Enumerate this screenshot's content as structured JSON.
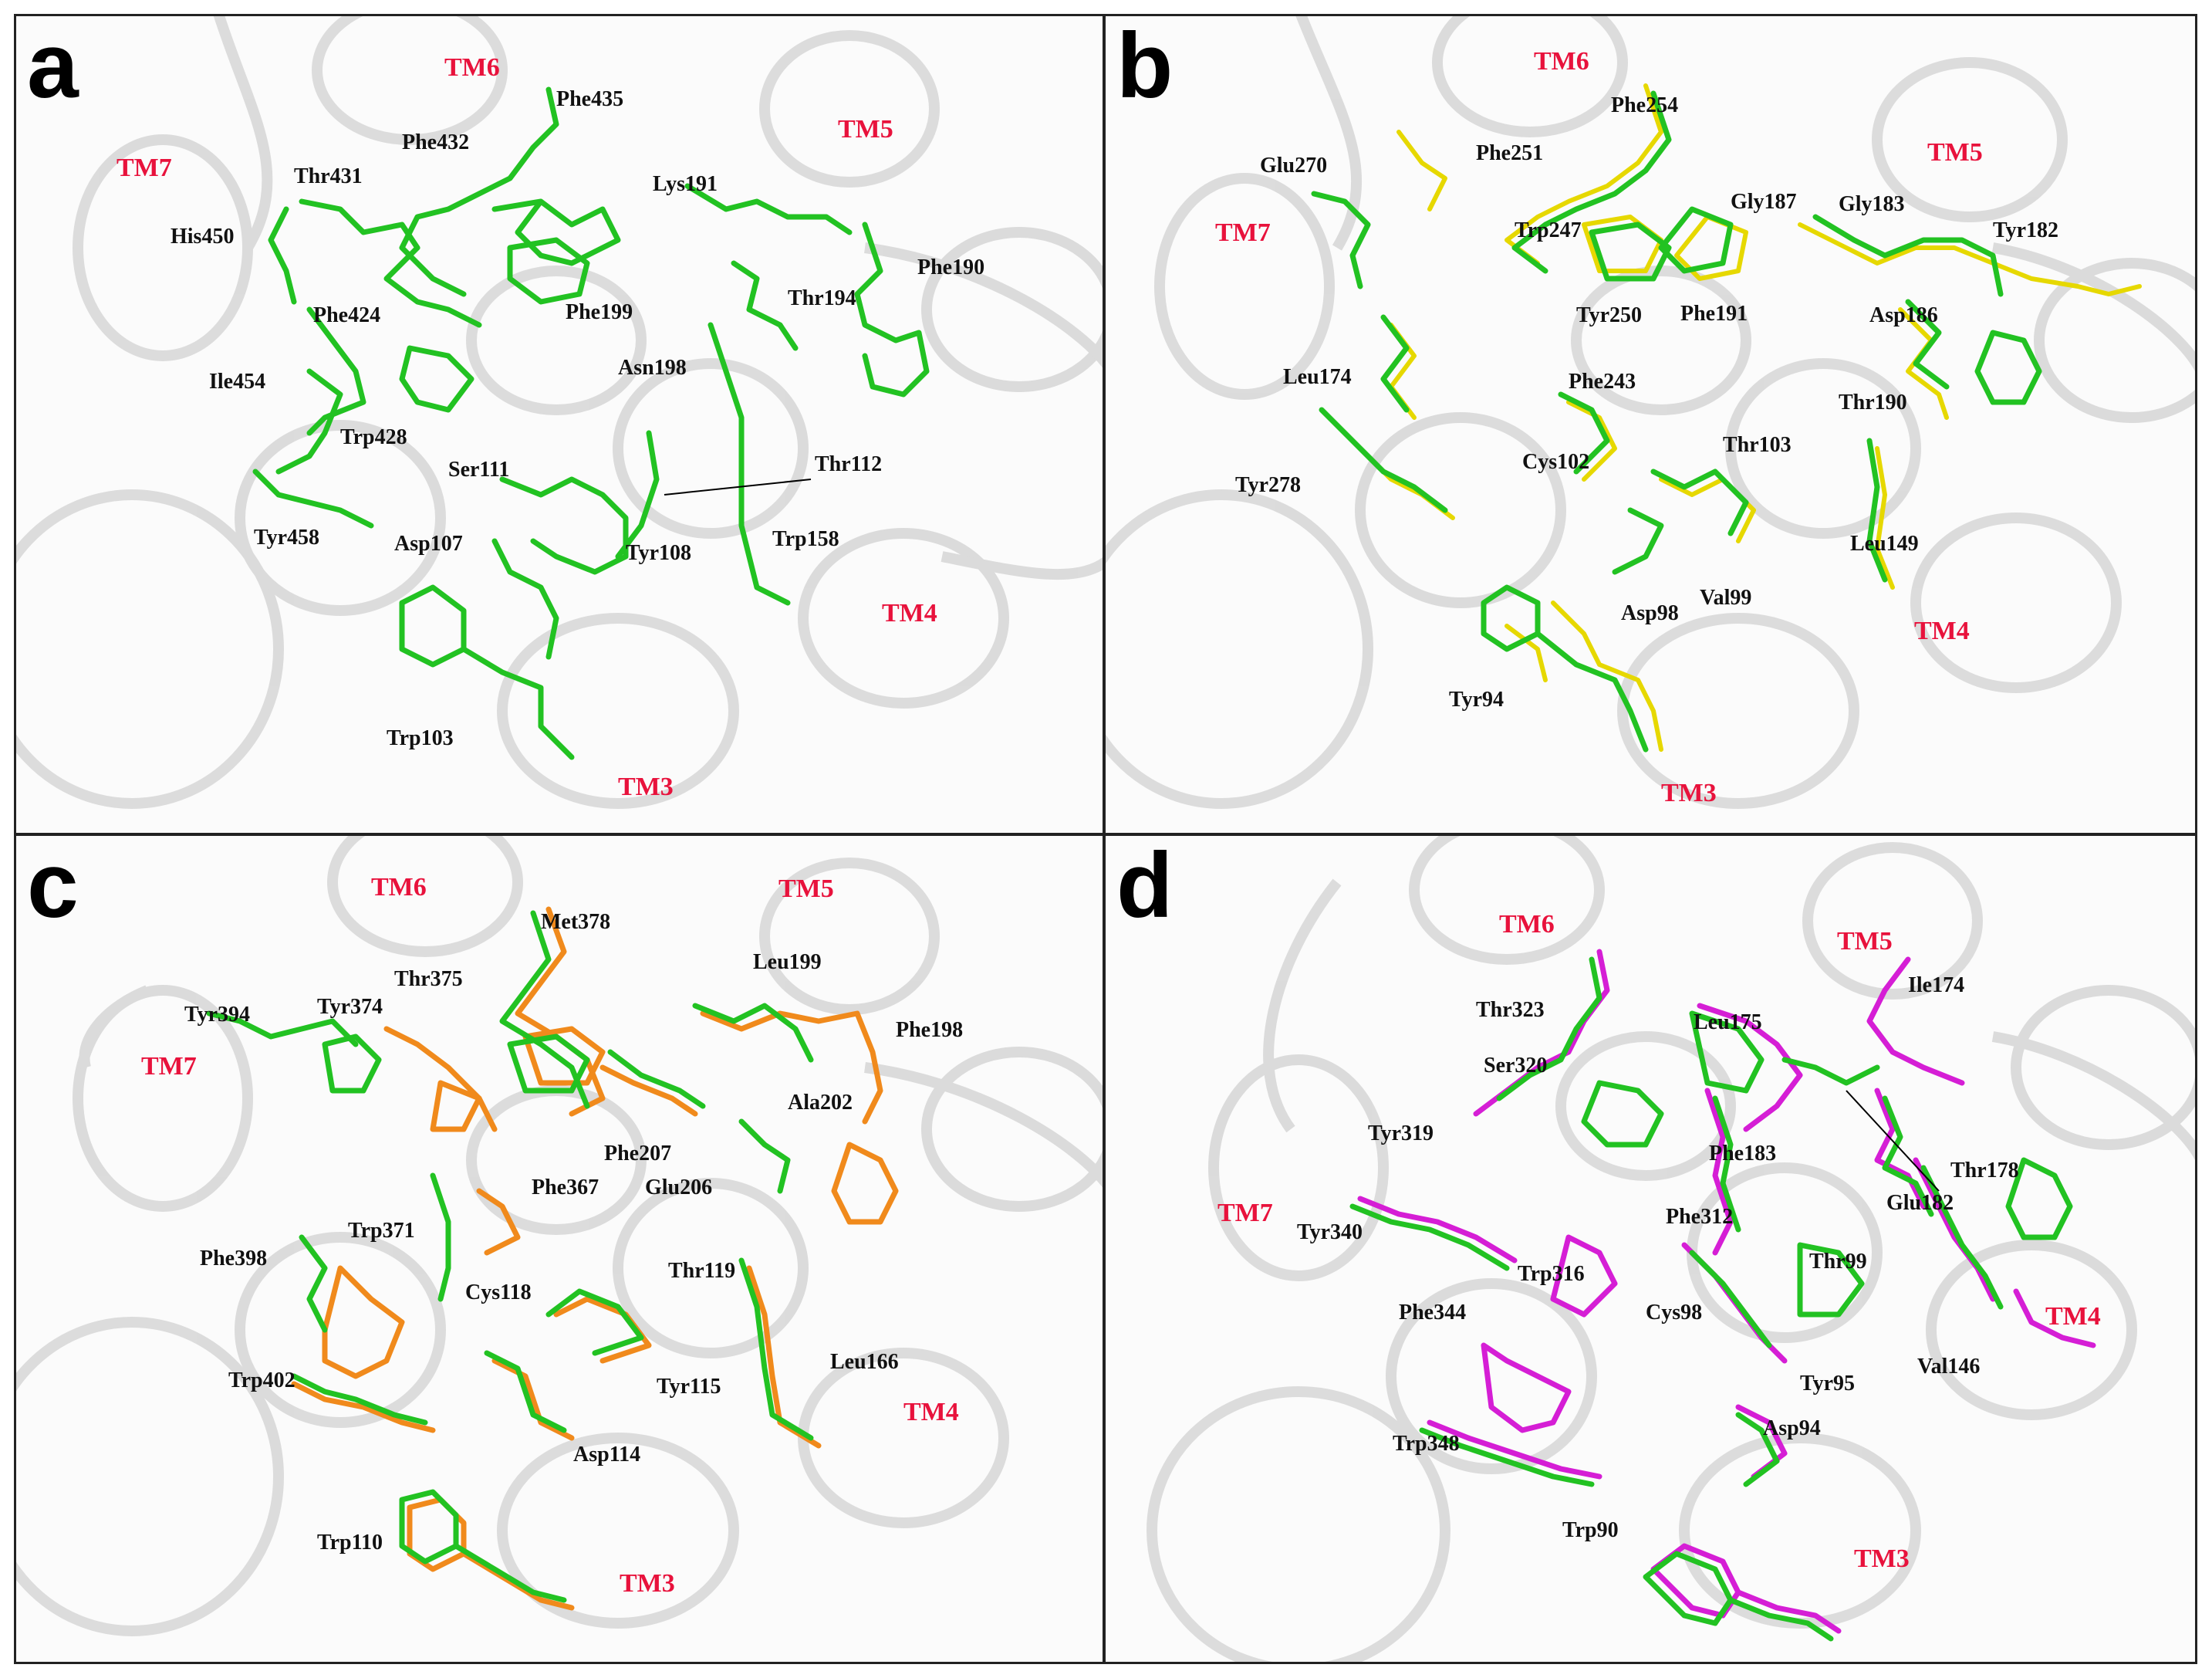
{
  "panels": [
    {
      "letter": "a",
      "tm_labels": [
        "TM6",
        "TM5",
        "TM7",
        "TM4",
        "TM3"
      ],
      "residues": [
        "Phe435",
        "Phe432",
        "Thr431",
        "His450",
        "Lys191",
        "Phe190",
        "Phe424",
        "Phe199",
        "Thr194",
        "Ile454",
        "Asn198",
        "Trp428",
        "Ser111",
        "Thr112",
        "Tyr458",
        "Asp107",
        "Tyr108",
        "Trp158",
        "Trp103"
      ],
      "colors": {
        "primary": "#22c222"
      }
    },
    {
      "letter": "b",
      "tm_labels": [
        "TM6",
        "TM5",
        "TM7",
        "TM4",
        "TM3"
      ],
      "residues": [
        "Phe254",
        "Glu270",
        "Phe251",
        "Gly187",
        "Gly183",
        "Tyr182",
        "Trp247",
        "Tyr250",
        "Phe191",
        "Asp186",
        "Leu174",
        "Phe243",
        "Thr190",
        "Cys102",
        "Thr103",
        "Tyr278",
        "Leu149",
        "Asp98",
        "Val99",
        "Tyr94"
      ],
      "colors": {
        "primary": "#22c222",
        "secondary": "#e6d800"
      }
    },
    {
      "letter": "c",
      "tm_labels": [
        "TM6",
        "TM5",
        "TM7",
        "TM4",
        "TM3"
      ],
      "residues": [
        "Met378",
        "Thr375",
        "Tyr394",
        "Tyr374",
        "Leu199",
        "Phe198",
        "Ala202",
        "Phe207",
        "Glu206",
        "Phe367",
        "Trp371",
        "Phe398",
        "Thr119",
        "Cys118",
        "Leu166",
        "Trp402",
        "Tyr115",
        "Asp114",
        "Trp110"
      ],
      "colors": {
        "primary": "#22c222",
        "secondary": "#f08a1c"
      }
    },
    {
      "letter": "d",
      "tm_labels": [
        "TM6",
        "TM5",
        "TM7",
        "TM4",
        "TM3"
      ],
      "residues": [
        "Ile174",
        "Thr323",
        "Leu175",
        "Ser320",
        "Tyr319",
        "Phe183",
        "Thr178",
        "Glu182",
        "Phe312",
        "Tyr340",
        "Thr99",
        "Trp316",
        "Phe344",
        "Cys98",
        "Val146",
        "Tyr95",
        "Asp94",
        "Trp348",
        "Trp90"
      ],
      "colors": {
        "primary": "#22c222",
        "secondary": "#d51ed5"
      }
    }
  ]
}
